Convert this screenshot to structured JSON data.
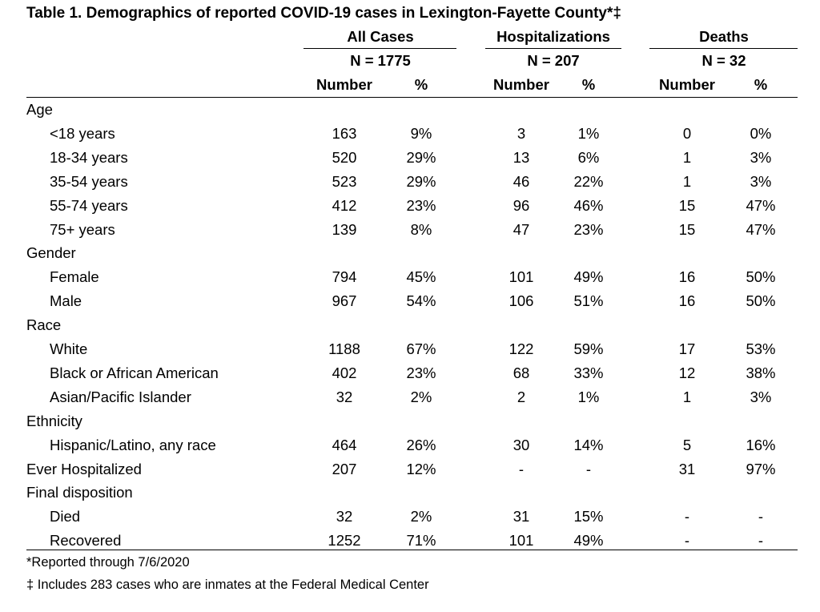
{
  "title": "Table 1. Demographics of reported COVID-19 cases in Lexington-Fayette County*‡",
  "groups": [
    {
      "name": "All Cases",
      "n": "N = 1775"
    },
    {
      "name": "Hospitalizations",
      "n": "N = 207"
    },
    {
      "name": "Deaths",
      "n": "N = 32"
    }
  ],
  "subheaders": [
    "Number",
    "%",
    "Number",
    "%",
    "Number",
    "%"
  ],
  "rows": [
    {
      "label": "Age",
      "indent": false,
      "values": []
    },
    {
      "label": "<18 years",
      "indent": true,
      "values": [
        "163",
        "9%",
        "3",
        "1%",
        "0",
        "0%"
      ]
    },
    {
      "label": "18-34 years",
      "indent": true,
      "values": [
        "520",
        "29%",
        "13",
        "6%",
        "1",
        "3%"
      ]
    },
    {
      "label": "35-54 years",
      "indent": true,
      "values": [
        "523",
        "29%",
        "46",
        "22%",
        "1",
        "3%"
      ]
    },
    {
      "label": "55-74 years",
      "indent": true,
      "values": [
        "412",
        "23%",
        "96",
        "46%",
        "15",
        "47%"
      ]
    },
    {
      "label": "75+ years",
      "indent": true,
      "values": [
        "139",
        "8%",
        "47",
        "23%",
        "15",
        "47%"
      ]
    },
    {
      "label": "Gender",
      "indent": false,
      "values": []
    },
    {
      "label": "Female",
      "indent": true,
      "values": [
        "794",
        "45%",
        "101",
        "49%",
        "16",
        "50%"
      ]
    },
    {
      "label": "Male",
      "indent": true,
      "values": [
        "967",
        "54%",
        "106",
        "51%",
        "16",
        "50%"
      ]
    },
    {
      "label": "Race",
      "indent": false,
      "values": []
    },
    {
      "label": "White",
      "indent": true,
      "values": [
        "1188",
        "67%",
        "122",
        "59%",
        "17",
        "53%"
      ]
    },
    {
      "label": "Black or African American",
      "indent": true,
      "values": [
        "402",
        "23%",
        "68",
        "33%",
        "12",
        "38%"
      ]
    },
    {
      "label": "Asian/Pacific Islander",
      "indent": true,
      "values": [
        "32",
        "2%",
        "2",
        "1%",
        "1",
        "3%"
      ]
    },
    {
      "label": "Ethnicity",
      "indent": false,
      "values": []
    },
    {
      "label": "Hispanic/Latino, any race",
      "indent": true,
      "values": [
        "464",
        "26%",
        "30",
        "14%",
        "5",
        "16%"
      ]
    },
    {
      "label": "Ever Hospitalized",
      "indent": false,
      "values": [
        "207",
        "12%",
        "-",
        "-",
        "31",
        "97%"
      ]
    },
    {
      "label": "Final disposition",
      "indent": false,
      "values": []
    },
    {
      "label": "Died",
      "indent": true,
      "values": [
        "32",
        "2%",
        "31",
        "15%",
        "-",
        "-"
      ]
    },
    {
      "label": "Recovered",
      "indent": true,
      "values": [
        "1252",
        "71%",
        "101",
        "49%",
        "-",
        "-"
      ]
    }
  ],
  "footnotes": [
    "*Reported through 7/6/2020",
    "‡ Includes 283 cases who are inmates at the Federal Medical Center"
  ]
}
